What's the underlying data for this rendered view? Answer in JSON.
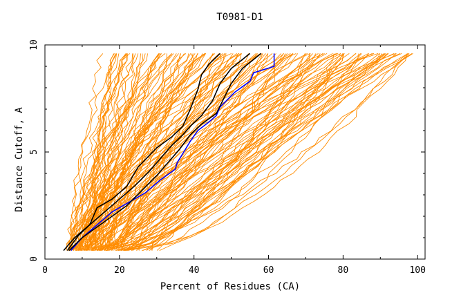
{
  "chart_data": {
    "type": "line",
    "title": "T0981-D1",
    "xlabel": "Percent of Residues (CA)",
    "ylabel": "Distance Cutoff, A",
    "xlim": [
      0,
      102
    ],
    "ylim": [
      0,
      10
    ],
    "x_ticks": [
      0,
      20,
      40,
      60,
      80,
      100
    ],
    "y_ticks": [
      0,
      5,
      10
    ],
    "grid": false,
    "colors": {
      "background_models": "#ff8c00",
      "highlight_blue": "#0000ff",
      "highlight_black": "#000000",
      "axis": "#000000"
    },
    "series": [
      {
        "color": "#0000ff",
        "x": [
          7,
          10,
          14,
          18,
          22,
          27,
          31,
          35,
          35.5,
          39,
          41,
          44,
          46,
          47,
          51,
          55,
          56,
          61.5,
          61.5
        ],
        "y": [
          0.4,
          1.0,
          1.6,
          2.2,
          2.6,
          3.1,
          3.7,
          4.2,
          4.5,
          5.5,
          6.0,
          6.4,
          6.7,
          7.1,
          7.8,
          8.3,
          8.7,
          9.0,
          9.6
        ]
      },
      {
        "color": "#000000",
        "x": [
          6.5,
          10,
          14,
          18,
          22,
          26,
          30,
          33,
          36,
          39,
          42,
          46,
          48,
          50,
          53,
          58
        ],
        "y": [
          0.4,
          1.0,
          1.5,
          2.0,
          2.5,
          3.2,
          3.9,
          4.5,
          5.1,
          5.8,
          6.3,
          6.8,
          7.5,
          8.2,
          8.9,
          9.6
        ]
      },
      {
        "color": "#000000",
        "x": [
          5,
          8,
          12,
          16,
          20,
          24,
          28,
          31,
          34,
          37,
          39,
          42,
          45,
          47,
          50,
          55
        ],
        "y": [
          0.4,
          1.0,
          1.6,
          2.2,
          2.8,
          3.4,
          4.1,
          4.7,
          5.3,
          5.8,
          6.2,
          6.7,
          7.4,
          8.2,
          8.9,
          9.6
        ]
      },
      {
        "color": "#000000",
        "x": [
          6,
          9,
          12,
          14,
          18,
          22,
          25,
          30,
          34,
          37,
          37,
          39,
          41,
          42,
          44,
          47
        ],
        "y": [
          0.4,
          1.1,
          1.6,
          2.4,
          2.8,
          3.4,
          4.3,
          5.2,
          5.7,
          6.2,
          6.2,
          7.0,
          7.9,
          8.6,
          9.1,
          9.6
        ]
      }
    ]
  }
}
